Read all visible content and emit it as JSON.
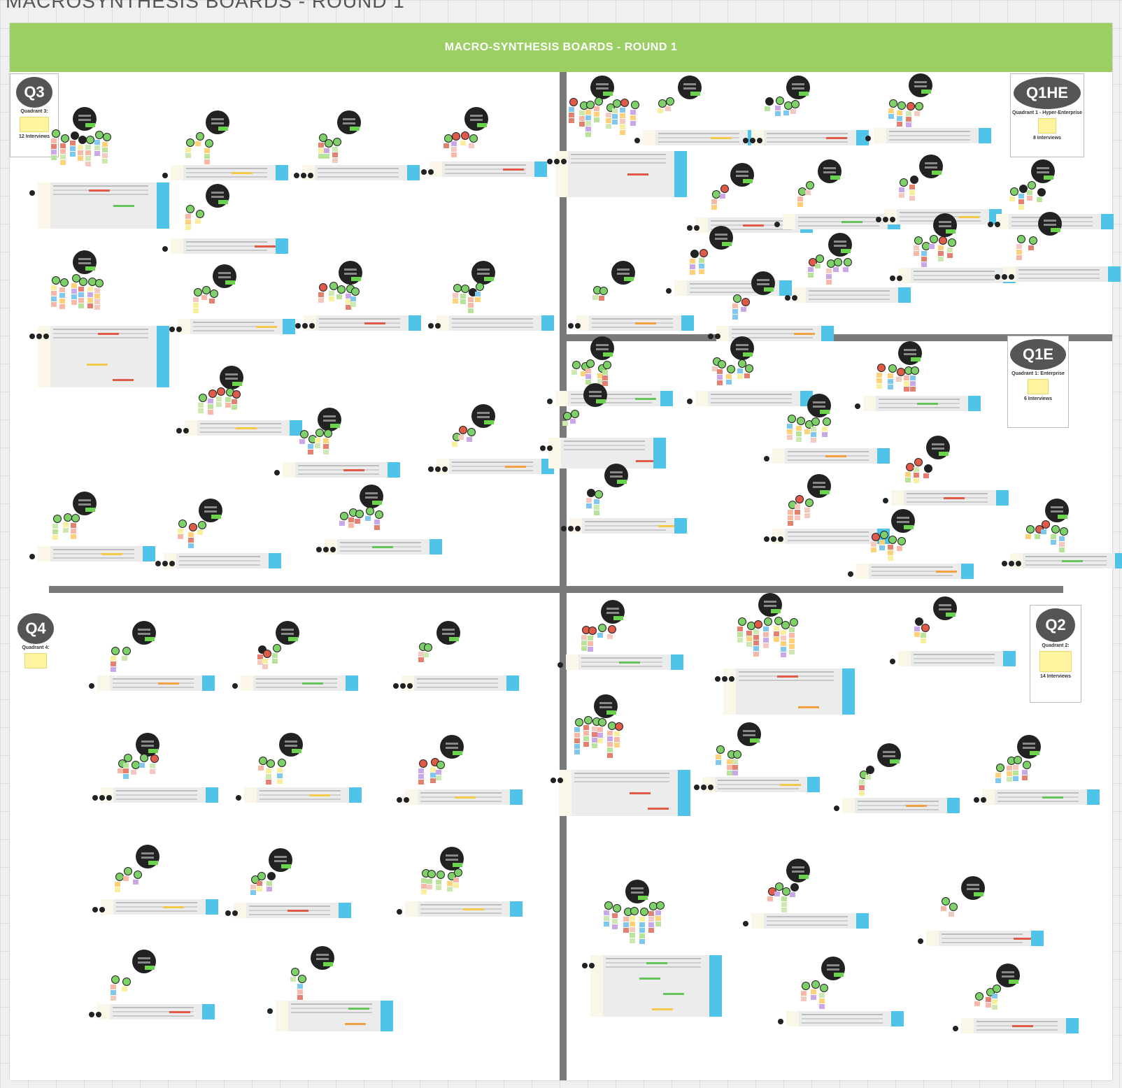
{
  "canvas": {
    "title": "MACROSYNTHESIS BOARDS - ROUND 1"
  },
  "board": {
    "banner": "MACRO-SYNTHESIS BOARDS - ROUND 1"
  },
  "colors": {
    "banner": "#9ccf63",
    "divider": "#7a7a7a",
    "hub": "#222222",
    "node_green": "#7ed068",
    "node_red": "#e05a48",
    "table_accent": "#4fc3e8"
  },
  "quadrants": [
    {
      "id": "q3",
      "badge": "Q3",
      "subtitle": "Quadrant 3:",
      "count": "12 Interviews"
    },
    {
      "id": "q1he",
      "badge": "Q1HE",
      "subtitle": "Quadrant 1 - Hyper-Enterprise",
      "count": "8 Interviews"
    },
    {
      "id": "q1e",
      "badge": "Q1E",
      "subtitle": "Quadrant 1: Enterprise",
      "count": "6 Interviews"
    },
    {
      "id": "q4",
      "badge": "Q4",
      "subtitle": "Quadrant 4:",
      "count": ""
    },
    {
      "id": "q2",
      "badge": "Q2",
      "subtitle": "Quadrant 2:",
      "count": "14 Interviews"
    }
  ]
}
